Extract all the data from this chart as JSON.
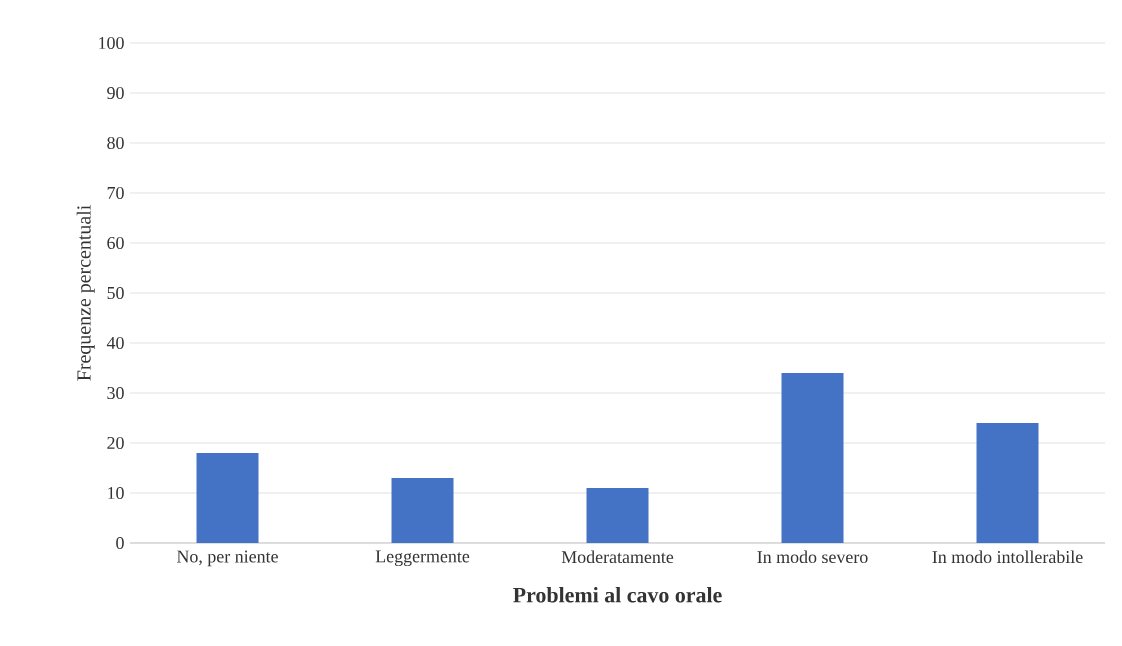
{
  "chart_data": {
    "type": "bar",
    "xlabel": "Problemi al cavo orale",
    "ylabel": "Frequenze percentuali",
    "categories": [
      "No, per niente",
      "Leggermente",
      "Moderatamente",
      "In modo severo",
      "In modo intollerabile"
    ],
    "values": [
      18,
      13,
      11,
      34,
      24
    ],
    "color": "#4472c4",
    "ylim": [
      0,
      100
    ],
    "yticks": [
      0,
      10,
      20,
      30,
      40,
      50,
      60,
      70,
      80,
      90,
      100
    ],
    "grid": "y"
  }
}
